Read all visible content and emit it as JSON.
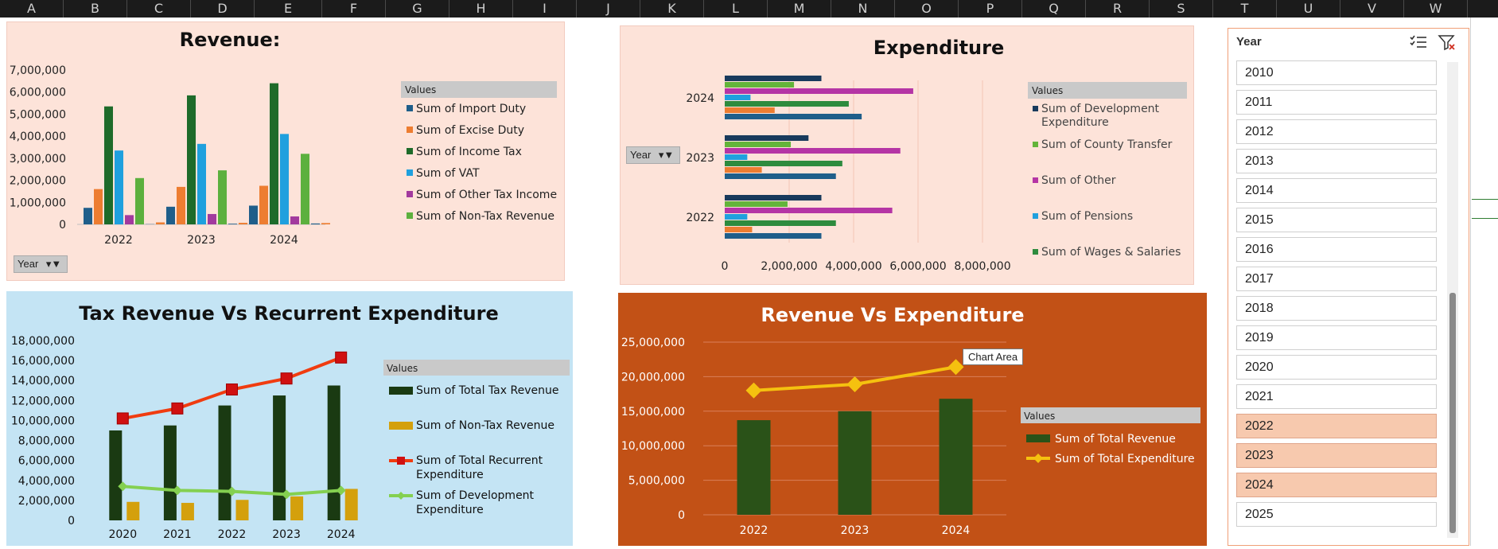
{
  "columns": [
    "A",
    "B",
    "C",
    "D",
    "E",
    "F",
    "G",
    "H",
    "I",
    "J",
    "K",
    "L",
    "M",
    "N",
    "O",
    "P",
    "Q",
    "R",
    "S",
    "T",
    "U",
    "V",
    "W"
  ],
  "colors": {
    "import_duty": "#1f5e8a",
    "excise_duty": "#ed7d31",
    "income_tax": "#1e6b2a",
    "vat": "#1fa0de",
    "other_tax": "#a23a9e",
    "non_tax": "#5cb03e",
    "dev_exp": "#183a5c",
    "county": "#63b43a",
    "other": "#b535a5",
    "pensions": "#1fa0de",
    "wages": "#2e8b3e",
    "total_tax": "#1a3a12",
    "non_tax_gold": "#d4a00c",
    "recurrent": "#f03c10",
    "dev_line": "#84d050",
    "rev_bar": "#2a5218",
    "exp_line": "#f5c10f"
  },
  "filters": {
    "revenue_year_button": "Year",
    "expenditure_year_button": "Year"
  },
  "slicer": {
    "title": "Year",
    "items": [
      {
        "label": "2010",
        "selected": false
      },
      {
        "label": "2011",
        "selected": false
      },
      {
        "label": "2012",
        "selected": false
      },
      {
        "label": "2013",
        "selected": false
      },
      {
        "label": "2014",
        "selected": false
      },
      {
        "label": "2015",
        "selected": false
      },
      {
        "label": "2016",
        "selected": false
      },
      {
        "label": "2017",
        "selected": false
      },
      {
        "label": "2018",
        "selected": false
      },
      {
        "label": "2019",
        "selected": false
      },
      {
        "label": "2020",
        "selected": false
      },
      {
        "label": "2021",
        "selected": false
      },
      {
        "label": "2022",
        "selected": true
      },
      {
        "label": "2023",
        "selected": true
      },
      {
        "label": "2024",
        "selected": true
      },
      {
        "label": "2025",
        "selected": false
      }
    ]
  },
  "tooltip": "Chart Area",
  "chart_data": [
    {
      "id": "revenue",
      "type": "bar",
      "title": "Revenue:",
      "legend_title": "Values",
      "legend_position": "right",
      "categories": [
        "2022",
        "2023",
        "2024"
      ],
      "ylim": [
        0,
        7000000
      ],
      "ytick_labels": [
        "0",
        "1,000,000",
        "2,000,000",
        "3,000,000",
        "4,000,000",
        "5,000,000",
        "6,000,000",
        "7,000,000"
      ],
      "grid": false,
      "series": [
        {
          "name": "Sum of Import Duty",
          "color_key": "import_duty",
          "values": [
            750000,
            800000,
            850000
          ]
        },
        {
          "name": "Sum of Excise Duty",
          "color_key": "excise_duty",
          "values": [
            1600000,
            1700000,
            1750000
          ]
        },
        {
          "name": "Sum of Income Tax",
          "color_key": "income_tax",
          "values": [
            5350000,
            5850000,
            6400000
          ]
        },
        {
          "name": "Sum of VAT",
          "color_key": "vat",
          "values": [
            3350000,
            3650000,
            4100000
          ]
        },
        {
          "name": "Sum of Other Tax Income",
          "color_key": "other_tax",
          "values": [
            420000,
            470000,
            360000
          ]
        },
        {
          "name": "Sum of Non-Tax Revenue",
          "color_key": "non_tax",
          "values": [
            2100000,
            2450000,
            3200000
          ]
        },
        {
          "name": "",
          "color_key": "import_duty",
          "values": [
            10000,
            30000,
            40000
          ]
        },
        {
          "name": "",
          "color_key": "excise_duty",
          "values": [
            90000,
            70000,
            60000
          ]
        }
      ]
    },
    {
      "id": "expenditure",
      "type": "bar",
      "orientation": "horizontal",
      "title": "Expenditure",
      "legend_title": "Values",
      "legend_position": "right",
      "categories": [
        "2022",
        "2023",
        "2024"
      ],
      "xlim": [
        0,
        8000000
      ],
      "xtick_labels": [
        "0",
        "2,000,000",
        "4,000,000",
        "6,000,000",
        "8,000,000"
      ],
      "grid": true,
      "series": [
        {
          "name": "Sum of Development Expenditure",
          "color_key": "dev_exp",
          "values": [
            3000000,
            2600000,
            3000000
          ]
        },
        {
          "name": "Sum of County Transfer",
          "color_key": "county",
          "values": [
            1950000,
            2050000,
            2150000
          ]
        },
        {
          "name": "Sum of Other",
          "color_key": "other",
          "values": [
            5200000,
            5450000,
            5850000
          ]
        },
        {
          "name": "Sum of Pensions",
          "color_key": "pensions",
          "values": [
            700000,
            700000,
            800000
          ]
        },
        {
          "name": "Sum of Wages & Salaries",
          "color_key": "wages",
          "values": [
            3450000,
            3650000,
            3850000
          ]
        },
        {
          "name": "",
          "color_key": "excise_duty",
          "values": [
            850000,
            1150000,
            1550000
          ]
        },
        {
          "name": "",
          "color_key": "import_duty",
          "values": [
            3000000,
            3450000,
            4250000
          ]
        }
      ]
    },
    {
      "id": "tax_vs_recurrent",
      "type": "bar",
      "title": "Tax Revenue Vs Recurrent Expenditure",
      "legend_title": "Values",
      "legend_position": "right",
      "categories": [
        "2020",
        "2021",
        "2022",
        "2023",
        "2024"
      ],
      "ylim": [
        0,
        18000000
      ],
      "ytick_labels": [
        "0",
        "2,000,000",
        "4,000,000",
        "6,000,000",
        "8,000,000",
        "10,000,000",
        "12,000,000",
        "14,000,000",
        "16,000,000",
        "18,000,000"
      ],
      "grid": false,
      "series": [
        {
          "name": "Sum of Total Tax Revenue",
          "kind": "bar",
          "color_key": "total_tax",
          "values": [
            9000000,
            9500000,
            11500000,
            12500000,
            13500000
          ]
        },
        {
          "name": "Sum of Non-Tax Revenue",
          "kind": "bar",
          "color_key": "non_tax_gold",
          "values": [
            1850000,
            1750000,
            2050000,
            2400000,
            3150000
          ]
        },
        {
          "name": "Sum of Total Recurrent Expenditure",
          "kind": "line",
          "marker": "square",
          "color_key": "recurrent",
          "values": [
            10200000,
            11200000,
            13100000,
            14200000,
            16300000
          ]
        },
        {
          "name": "Sum of Development Expenditure",
          "kind": "line",
          "marker": "diamond",
          "color_key": "dev_line",
          "values": [
            3400000,
            3000000,
            2900000,
            2600000,
            3000000
          ]
        }
      ]
    },
    {
      "id": "revenue_vs_expenditure",
      "type": "bar",
      "title": "Revenue Vs Expenditure",
      "legend_title": "Values",
      "legend_position": "right",
      "categories": [
        "2022",
        "2023",
        "2024"
      ],
      "ylim": [
        0,
        25000000
      ],
      "ytick_labels": [
        "0",
        "5,000,000",
        "10,000,000",
        "15,000,000",
        "20,000,000",
        "25,000,000"
      ],
      "grid": true,
      "series": [
        {
          "name": "Sum of Total Revenue",
          "kind": "bar",
          "color_key": "rev_bar",
          "values": [
            13700000,
            15000000,
            16800000
          ]
        },
        {
          "name": "Sum of Total Expenditure",
          "kind": "line",
          "marker": "diamond",
          "color_key": "exp_line",
          "values": [
            18000000,
            18900000,
            21400000
          ]
        }
      ]
    }
  ]
}
